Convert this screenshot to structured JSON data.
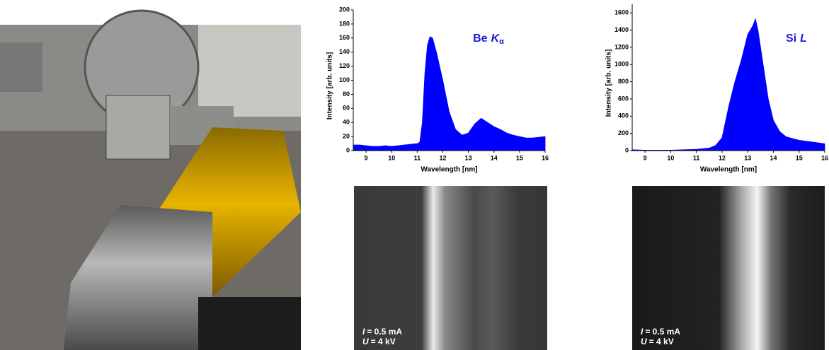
{
  "chart_data": [
    {
      "type": "area",
      "annotation": "Be",
      "annotation_symbol": "K",
      "annotation_sub": "α",
      "x_label": "Wavelength [nm]",
      "y_label": "Intensity [arb. units]",
      "color": "#0000ff",
      "x": [
        8.5,
        8.75,
        9,
        9.25,
        9.5,
        9.75,
        10,
        10.25,
        10.5,
        10.75,
        11,
        11.1,
        11.2,
        11.3,
        11.4,
        11.5,
        11.6,
        11.75,
        12,
        12.25,
        12.5,
        12.75,
        13,
        13.25,
        13.5,
        13.75,
        14,
        14.25,
        14.5,
        14.75,
        15,
        15.25,
        15.5,
        15.75,
        16
      ],
      "values": [
        8,
        8,
        7,
        6,
        6,
        7,
        6,
        7,
        8,
        9,
        10,
        12,
        40,
        110,
        150,
        162,
        160,
        140,
        100,
        55,
        30,
        22,
        25,
        38,
        46,
        40,
        34,
        30,
        25,
        22,
        20,
        18,
        18,
        19,
        20
      ],
      "xlim": [
        8.5,
        16
      ],
      "xticks": [
        9,
        10,
        11,
        12,
        13,
        14,
        15,
        16
      ],
      "ylim": [
        0,
        200
      ],
      "yticks": [
        0,
        20,
        40,
        60,
        80,
        100,
        120,
        140,
        160,
        180,
        200
      ]
    },
    {
      "type": "area",
      "annotation": "Si",
      "annotation_symbol": "L",
      "x_label": "Wavelength [nm]",
      "y_label": "Intensity [arb. units]",
      "color": "#0000ff",
      "x": [
        8.5,
        9,
        9.5,
        10,
        10.5,
        11,
        11.5,
        11.75,
        12,
        12.25,
        12.5,
        12.75,
        13,
        13.2,
        13.3,
        13.4,
        13.6,
        13.8,
        14,
        14.25,
        14.5,
        15,
        15.5,
        16
      ],
      "values": [
        10,
        5,
        5,
        5,
        10,
        15,
        30,
        60,
        150,
        500,
        800,
        1050,
        1350,
        1450,
        1530,
        1400,
        1000,
        600,
        350,
        220,
        160,
        120,
        100,
        80
      ],
      "xlim": [
        8.5,
        16
      ],
      "xticks": [
        9,
        10,
        11,
        12,
        13,
        14,
        15,
        16
      ],
      "ylim": [
        0,
        1700
      ],
      "yticks": [
        0,
        200,
        400,
        600,
        800,
        1000,
        1200,
        1400,
        1600
      ]
    }
  ],
  "panels": [
    {
      "lines": [
        {
          "symbol": "I",
          "rest": "= 0.5 mA"
        },
        {
          "symbol": "U",
          "rest": "= 4 kV"
        }
      ]
    },
    {
      "lines": [
        {
          "symbol": "I",
          "rest": "= 0.5 mA"
        },
        {
          "symbol": "U",
          "rest": "= 4 kV"
        }
      ]
    }
  ]
}
